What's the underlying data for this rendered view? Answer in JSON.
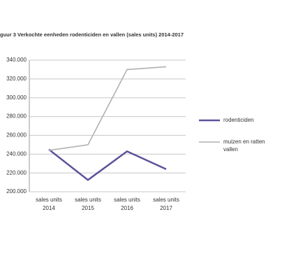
{
  "chart_data": {
    "type": "line",
    "title": "guur 3 Verkochte eenheden rodenticiden en vallen (sales units) 2014-2017",
    "categories": [
      "sales units 2014",
      "sales units 2015",
      "sales units 2016",
      "sales units 2017"
    ],
    "series": [
      {
        "name": "rodenticiden",
        "color": "#5a5299",
        "values": [
          245000,
          212500,
          243000,
          224000
        ]
      },
      {
        "name": "muizen en ratten vallen",
        "color": "#b0b0b0",
        "values": [
          244000,
          250000,
          330000,
          333000
        ]
      }
    ],
    "ylim": [
      200000,
      340000
    ],
    "yticks": [
      {
        "value": 200000,
        "label": "200.000"
      },
      {
        "value": 220000,
        "label": "220.000"
      },
      {
        "value": 240000,
        "label": "240.000"
      },
      {
        "value": 260000,
        "label": "260.000"
      },
      {
        "value": 280000,
        "label": "280.000"
      },
      {
        "value": 300000,
        "label": "300.000"
      },
      {
        "value": 320000,
        "label": "320.000"
      },
      {
        "value": 340000,
        "label": "340.000"
      }
    ],
    "grid": true
  }
}
